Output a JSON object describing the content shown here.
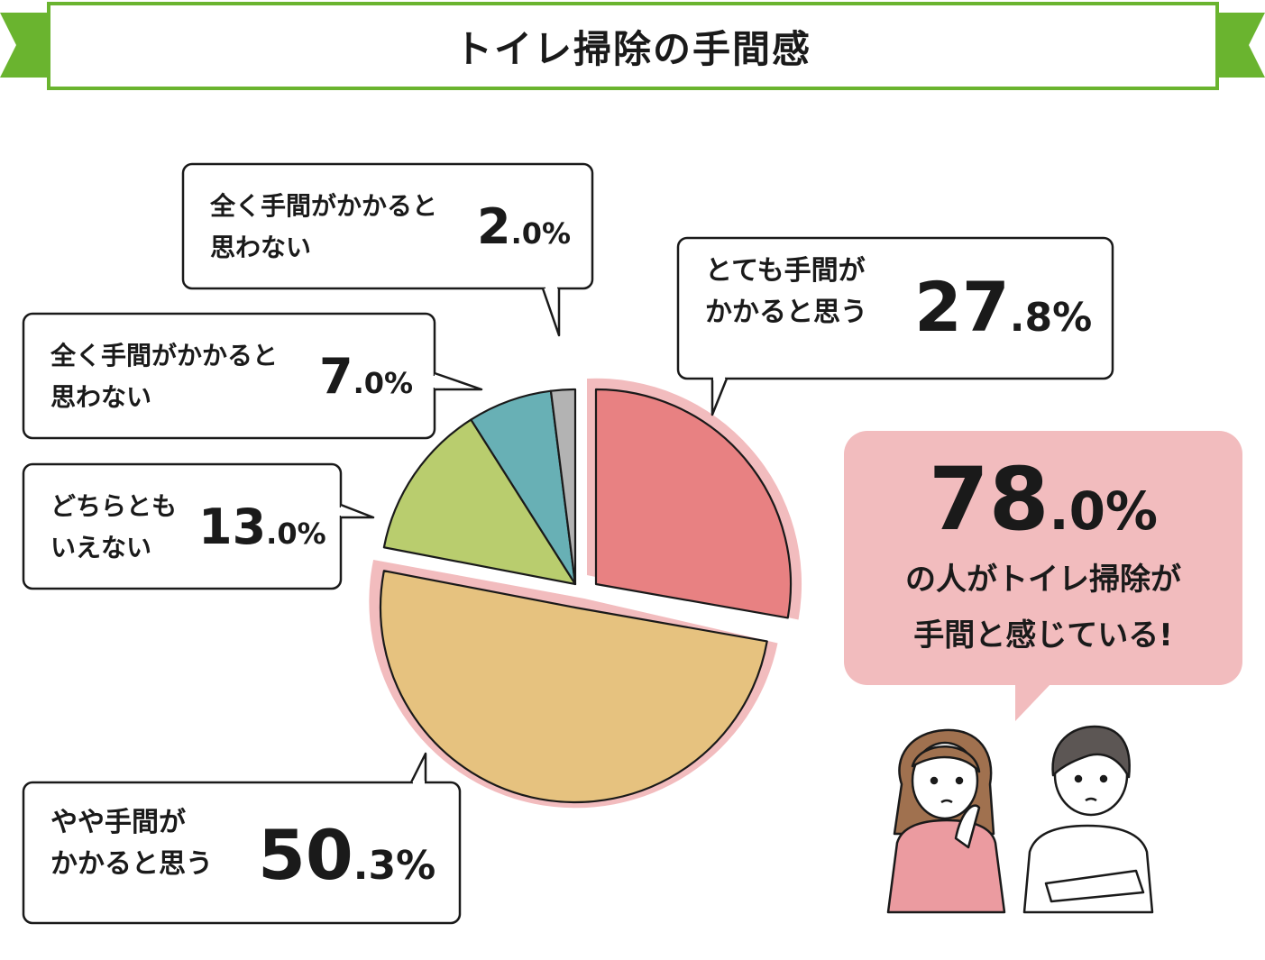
{
  "title": "トイレ掃除の手間感",
  "colors": {
    "banner_green": "#6ab42f",
    "highlight_pink": "#f2bcbe",
    "slice_very": "#e88182",
    "slice_some": "#e6c27f",
    "slice_neutral": "#b9cd6e",
    "slice_notmuch": "#68b0b5",
    "slice_none": "#b3b3b3"
  },
  "chart_data": {
    "type": "pie",
    "title": "トイレ掃除の手間感",
    "unit": "%",
    "slices": [
      {
        "label": "とても手間がかかると思う",
        "value": 27.8,
        "color": "#e88182"
      },
      {
        "label": "やや手間がかかると思う",
        "value": 50.3,
        "color": "#e6c27f"
      },
      {
        "label": "どちらともいえない",
        "value": 13.0,
        "color": "#b9cd6e"
      },
      {
        "label": "全く手間がかかると思わない",
        "value": 7.0,
        "color": "#68b0b5"
      },
      {
        "label": "全く手間がかかると思わない",
        "value": 2.0,
        "color": "#b3b3b3"
      }
    ]
  },
  "bubbles": {
    "very": {
      "label": "とても手間が\nかかると思う",
      "int": "27",
      "dec": ".8%"
    },
    "some": {
      "label": "やや手間が\nかかると思う",
      "int": "50",
      "dec": ".3%"
    },
    "neutral": {
      "label": "どちらとも\nいえない",
      "int": "13",
      "dec": ".0%"
    },
    "notmuch": {
      "label": "全く手間がかかると\n思わない",
      "int": "7",
      "dec": ".0%"
    },
    "none": {
      "label": "全く手間がかかると\n思わない",
      "int": "2",
      "dec": ".0%"
    }
  },
  "summary": {
    "int": "78",
    "dec": ".0%",
    "text": "の人がトイレ掃除が\n手間と感じている!"
  }
}
